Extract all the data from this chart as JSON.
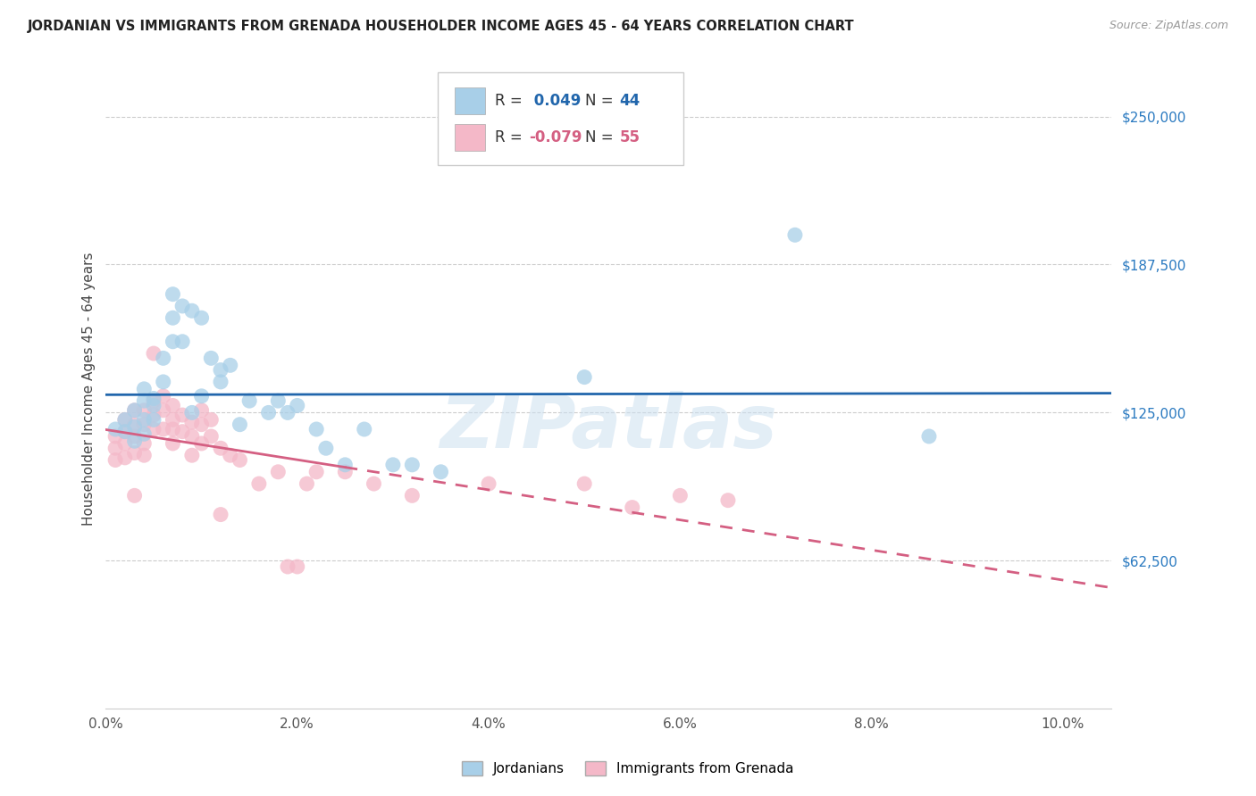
{
  "title": "JORDANIAN VS IMMIGRANTS FROM GRENADA HOUSEHOLDER INCOME AGES 45 - 64 YEARS CORRELATION CHART",
  "source": "Source: ZipAtlas.com",
  "ylabel": "Householder Income Ages 45 - 64 years",
  "xlim": [
    0.0,
    0.105
  ],
  "ylim": [
    0,
    270000
  ],
  "xtick_labels": [
    "0.0%",
    "2.0%",
    "4.0%",
    "6.0%",
    "8.0%",
    "10.0%"
  ],
  "xtick_values": [
    0.0,
    0.02,
    0.04,
    0.06,
    0.08,
    0.1
  ],
  "ytick_labels": [
    "$62,500",
    "$125,000",
    "$187,500",
    "$250,000"
  ],
  "ytick_values": [
    62500,
    125000,
    187500,
    250000
  ],
  "legend_labels": [
    "Jordanians",
    "Immigrants from Grenada"
  ],
  "blue_R": "0.049",
  "blue_N": "44",
  "pink_R": "-0.079",
  "pink_N": "55",
  "blue_scatter_color": "#a8cfe8",
  "pink_scatter_color": "#f4b8c8",
  "blue_line_color": "#2166ac",
  "pink_line_color": "#d45f82",
  "ytick_color": "#2979c0",
  "watermark": "ZIPatlas",
  "background_color": "#ffffff",
  "jordanians_x": [
    0.001,
    0.002,
    0.002,
    0.003,
    0.003,
    0.003,
    0.004,
    0.004,
    0.004,
    0.004,
    0.005,
    0.005,
    0.005,
    0.006,
    0.006,
    0.007,
    0.007,
    0.007,
    0.008,
    0.008,
    0.009,
    0.009,
    0.01,
    0.01,
    0.011,
    0.012,
    0.012,
    0.013,
    0.014,
    0.015,
    0.017,
    0.018,
    0.019,
    0.02,
    0.022,
    0.023,
    0.025,
    0.027,
    0.03,
    0.032,
    0.035,
    0.05,
    0.072,
    0.086
  ],
  "jordanians_y": [
    118000,
    122000,
    117000,
    126000,
    119000,
    113000,
    135000,
    130000,
    122000,
    116000,
    131000,
    128000,
    122000,
    148000,
    138000,
    175000,
    165000,
    155000,
    170000,
    155000,
    168000,
    125000,
    165000,
    132000,
    148000,
    143000,
    138000,
    145000,
    120000,
    130000,
    125000,
    130000,
    125000,
    128000,
    118000,
    110000,
    103000,
    118000,
    103000,
    103000,
    100000,
    140000,
    200000,
    115000
  ],
  "grenada_x": [
    0.001,
    0.001,
    0.001,
    0.002,
    0.002,
    0.002,
    0.002,
    0.003,
    0.003,
    0.003,
    0.003,
    0.003,
    0.004,
    0.004,
    0.004,
    0.004,
    0.005,
    0.005,
    0.005,
    0.005,
    0.006,
    0.006,
    0.006,
    0.007,
    0.007,
    0.007,
    0.007,
    0.008,
    0.008,
    0.009,
    0.009,
    0.009,
    0.01,
    0.01,
    0.01,
    0.011,
    0.011,
    0.012,
    0.012,
    0.013,
    0.014,
    0.016,
    0.018,
    0.019,
    0.02,
    0.021,
    0.022,
    0.025,
    0.028,
    0.032,
    0.04,
    0.05,
    0.06,
    0.065,
    0.055
  ],
  "grenada_y": [
    115000,
    110000,
    105000,
    122000,
    117000,
    112000,
    106000,
    126000,
    120000,
    115000,
    108000,
    90000,
    126000,
    120000,
    112000,
    107000,
    150000,
    130000,
    124000,
    118000,
    132000,
    126000,
    118000,
    128000,
    122000,
    118000,
    112000,
    124000,
    117000,
    121000,
    115000,
    107000,
    126000,
    120000,
    112000,
    122000,
    115000,
    110000,
    82000,
    107000,
    105000,
    95000,
    100000,
    60000,
    60000,
    95000,
    100000,
    100000,
    95000,
    90000,
    95000,
    95000,
    90000,
    88000,
    85000
  ]
}
